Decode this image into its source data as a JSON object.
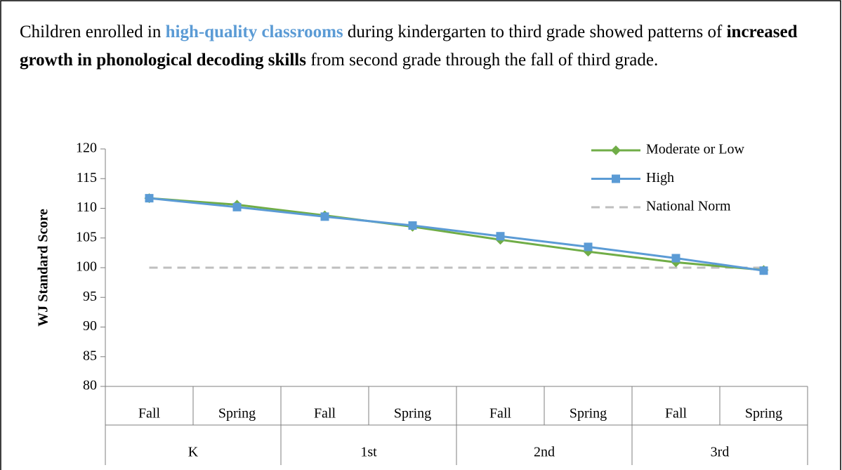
{
  "caption": [
    {
      "text": "Children enrolled in ",
      "bold": false
    },
    {
      "text": "high-quality classrooms",
      "bold": true,
      "color": "#5b9bd5"
    },
    {
      "text": " during kindergarten to third grade showed patterns of ",
      "bold": false
    },
    {
      "text": "increased growth in phonological decoding skills",
      "bold": true
    },
    {
      "text": " from second grade through the fall of third grade.",
      "bold": false
    }
  ],
  "chart_data": {
    "type": "line",
    "ylabel": "WJ Standard Score",
    "categories": [
      "Fall",
      "Spring",
      "Fall",
      "Spring",
      "Fall",
      "Spring",
      "Fall",
      "Spring"
    ],
    "groups": [
      "K",
      "1st",
      "2nd",
      "3rd"
    ],
    "series": [
      {
        "name": "Moderate or Low",
        "color": "#70ad47",
        "marker": "diamond",
        "values": [
          111.7,
          110.6,
          108.8,
          106.9,
          104.7,
          102.7,
          100.9,
          99.6
        ]
      },
      {
        "name": "High",
        "color": "#5b9bd5",
        "marker": "square",
        "values": [
          111.7,
          110.2,
          108.6,
          107.1,
          105.3,
          103.5,
          101.6,
          99.5
        ]
      },
      {
        "name": "National Norm",
        "color": "#bfbfbf",
        "dashed": true,
        "values": [
          100,
          100,
          100,
          100,
          100,
          100,
          100,
          100
        ]
      }
    ],
    "ylim": [
      80,
      120
    ],
    "yticks": [
      80,
      85,
      90,
      95,
      100,
      105,
      110,
      115,
      120
    ],
    "legend": "upper right"
  }
}
